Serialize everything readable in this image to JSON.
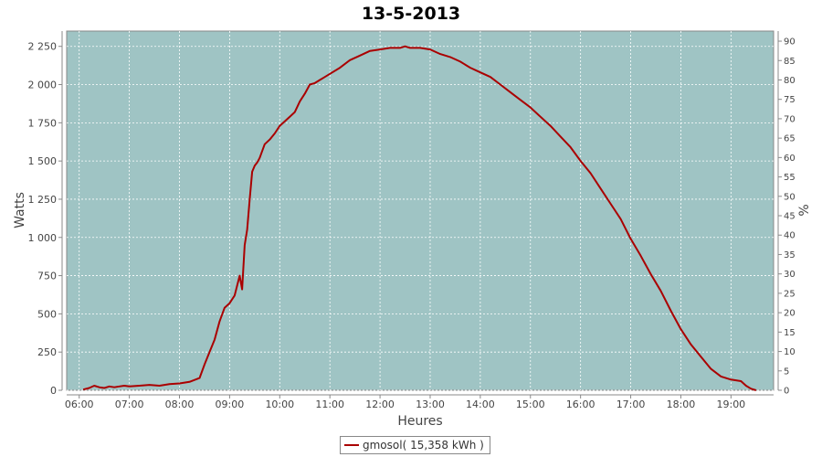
{
  "chart_data": {
    "type": "line",
    "title": "13-5-2013",
    "xlabel": "Heures",
    "ylabel": "Watts",
    "y2label": "%",
    "background": "#9fc4c4",
    "line_color": "#aa0000",
    "grid": true,
    "xlim": [
      5.75,
      19.85
    ],
    "ylim": [
      0,
      2350
    ],
    "y2lim": [
      0,
      92.6
    ],
    "x_ticks": [
      6,
      7,
      8,
      9,
      10,
      11,
      12,
      13,
      14,
      15,
      16,
      17,
      18,
      19
    ],
    "x_tick_labels": [
      "06:00",
      "07:00",
      "08:00",
      "09:00",
      "10:00",
      "11:00",
      "12:00",
      "13:00",
      "14:00",
      "15:00",
      "16:00",
      "17:00",
      "18:00",
      "19:00"
    ],
    "y_ticks": [
      0,
      250,
      500,
      750,
      1000,
      1250,
      1500,
      1750,
      2000,
      2250
    ],
    "y_tick_labels": [
      "0",
      "250",
      "500",
      "750",
      "1 000",
      "1 250",
      "1 500",
      "1 750",
      "2 000",
      "2 250"
    ],
    "y2_ticks": [
      0,
      5,
      10,
      15,
      20,
      25,
      30,
      35,
      40,
      45,
      50,
      55,
      60,
      65,
      70,
      75,
      80,
      85,
      90
    ],
    "y2_tick_labels": [
      "0",
      "5",
      "10",
      "15",
      "20",
      "25",
      "30",
      "35",
      "40",
      "45",
      "50",
      "55",
      "60",
      "65",
      "70",
      "75",
      "80",
      "85",
      "90"
    ],
    "series": [
      {
        "name": "gmosol( 15,358 kWh )",
        "x": [
          6.08,
          6.2,
          6.3,
          6.4,
          6.5,
          6.6,
          6.7,
          6.8,
          6.9,
          7.0,
          7.2,
          7.4,
          7.6,
          7.8,
          8.0,
          8.2,
          8.4,
          8.5,
          8.6,
          8.7,
          8.8,
          8.9,
          9.0,
          9.1,
          9.2,
          9.25,
          9.3,
          9.35,
          9.4,
          9.45,
          9.5,
          9.55,
          9.6,
          9.7,
          9.8,
          9.9,
          10.0,
          10.1,
          10.2,
          10.3,
          10.4,
          10.5,
          10.6,
          10.7,
          10.8,
          10.9,
          11.0,
          11.2,
          11.4,
          11.6,
          11.8,
          12.0,
          12.2,
          12.4,
          12.5,
          12.6,
          12.8,
          13.0,
          13.2,
          13.4,
          13.6,
          13.8,
          14.0,
          14.2,
          14.4,
          14.6,
          14.8,
          15.0,
          15.2,
          15.4,
          15.6,
          15.8,
          16.0,
          16.2,
          16.4,
          16.6,
          16.8,
          17.0,
          17.2,
          17.4,
          17.6,
          17.8,
          18.0,
          18.2,
          18.4,
          18.6,
          18.8,
          19.0,
          19.2,
          19.3,
          19.4,
          19.5
        ],
        "y": [
          5,
          15,
          30,
          20,
          15,
          25,
          20,
          25,
          30,
          25,
          30,
          35,
          30,
          40,
          45,
          55,
          80,
          170,
          250,
          330,
          450,
          540,
          570,
          620,
          750,
          660,
          950,
          1050,
          1250,
          1430,
          1470,
          1490,
          1520,
          1610,
          1640,
          1680,
          1730,
          1760,
          1790,
          1820,
          1890,
          1940,
          2000,
          2010,
          2030,
          2050,
          2070,
          2110,
          2160,
          2190,
          2220,
          2230,
          2240,
          2240,
          2250,
          2240,
          2240,
          2230,
          2200,
          2180,
          2150,
          2110,
          2080,
          2050,
          2000,
          1950,
          1900,
          1850,
          1790,
          1730,
          1660,
          1590,
          1500,
          1420,
          1320,
          1220,
          1120,
          990,
          880,
          760,
          650,
          520,
          400,
          300,
          220,
          140,
          90,
          70,
          60,
          30,
          10,
          0
        ]
      }
    ]
  }
}
